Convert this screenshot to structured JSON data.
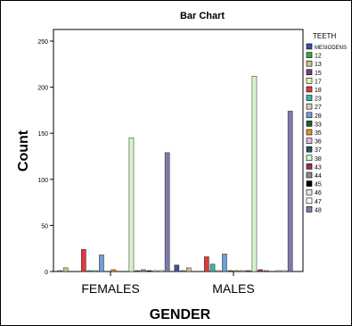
{
  "chart_data": {
    "type": "bar",
    "title": "Bar Chart",
    "xlabel": "GENDER",
    "ylabel": "Count",
    "categories": [
      "FEMALES",
      "MALES"
    ],
    "ylim": [
      0,
      260
    ],
    "yticks": [
      0,
      50,
      100,
      150,
      200,
      250
    ],
    "grid": false,
    "legend_title": "TEETH",
    "legend_position": "right",
    "series": [
      {
        "name": "MESIODENS",
        "color": "#3f4fa0",
        "values": [
          0,
          7
        ]
      },
      {
        "name": "12",
        "color": "#3da34a",
        "values": [
          1,
          1
        ]
      },
      {
        "name": "13",
        "color": "#c9c38a",
        "values": [
          4,
          4
        ]
      },
      {
        "name": "15",
        "color": "#7a3d91",
        "values": [
          0,
          0
        ]
      },
      {
        "name": "17",
        "color": "#f2f0b0",
        "values": [
          0,
          0
        ]
      },
      {
        "name": "18",
        "color": "#e03a3a",
        "values": [
          24,
          16
        ]
      },
      {
        "name": "23",
        "color": "#3fb3a8",
        "values": [
          1,
          8
        ]
      },
      {
        "name": "27",
        "color": "#d9c9b8",
        "values": [
          1,
          1
        ]
      },
      {
        "name": "28",
        "color": "#6fa0d8",
        "values": [
          18,
          19
        ]
      },
      {
        "name": "33",
        "color": "#1f5e2e",
        "values": [
          0,
          1
        ]
      },
      {
        "name": "35",
        "color": "#e8902a",
        "values": [
          2,
          1
        ]
      },
      {
        "name": "36",
        "color": "#e7b7d6",
        "values": [
          0,
          1
        ]
      },
      {
        "name": "37",
        "color": "#215a6b",
        "values": [
          0,
          1
        ]
      },
      {
        "name": "38",
        "color": "#d6f5c8",
        "values": [
          145,
          212
        ]
      },
      {
        "name": "43",
        "color": "#9c2a60",
        "values": [
          1,
          2
        ]
      },
      {
        "name": "44",
        "color": "#8a8a8a",
        "values": [
          2,
          1
        ]
      },
      {
        "name": "45",
        "color": "#000000",
        "values": [
          1,
          0
        ]
      },
      {
        "name": "46",
        "color": "#cfeef0",
        "values": [
          1,
          1
        ]
      },
      {
        "name": "47",
        "color": "#ffffff",
        "values": [
          1,
          1
        ]
      },
      {
        "name": "48",
        "color": "#7d7aa8",
        "values": [
          129,
          174
        ]
      }
    ]
  }
}
